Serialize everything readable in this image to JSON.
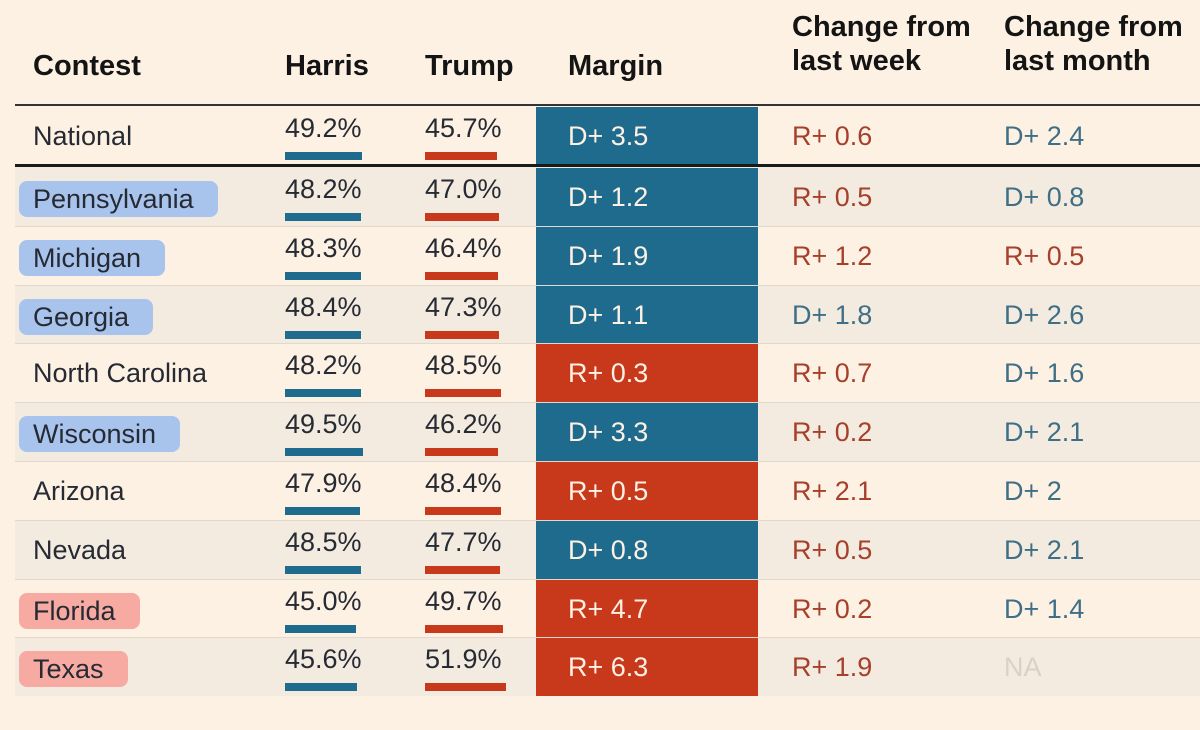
{
  "table": {
    "columns": [
      "Contest",
      "Harris",
      "Trump",
      "Margin",
      "Change from last week",
      "Change from last month"
    ],
    "rows": [
      [
        "National",
        "49.2%",
        "45.7%",
        "D+ 3.5",
        "R+ 0.6",
        "D+ 2.4"
      ],
      [
        "Pennsylvania",
        "48.2%",
        "47.0%",
        "D+ 1.2",
        "R+ 0.5",
        "D+ 0.8"
      ],
      [
        "Michigan",
        "48.3%",
        "46.4%",
        "D+ 1.9",
        "R+ 1.2",
        "R+ 0.5"
      ],
      [
        "Georgia",
        "48.4%",
        "47.3%",
        "D+ 1.1",
        "D+ 1.8",
        "D+ 2.6"
      ],
      [
        "North Carolina",
        "48.2%",
        "48.5%",
        "R+ 0.3",
        "R+ 0.7",
        "D+ 1.6"
      ],
      [
        "Wisconsin",
        "49.5%",
        "46.2%",
        "D+ 3.3",
        "R+ 0.2",
        "D+ 2.1"
      ],
      [
        "Arizona",
        "47.9%",
        "48.4%",
        "R+ 0.5",
        "R+ 2.1",
        "D+ 2"
      ],
      [
        "Nevada",
        "48.5%",
        "47.7%",
        "D+ 0.8",
        "R+ 0.5",
        "D+ 2.1"
      ],
      [
        "Florida",
        "45.0%",
        "49.7%",
        "R+ 4.7",
        "R+ 0.2",
        "D+ 1.4"
      ],
      [
        "Texas",
        "45.6%",
        "51.9%",
        "R+ 6.3",
        "R+ 1.9",
        "NA"
      ]
    ],
    "highlight_colors": [
      null,
      "#a8c3ec",
      "#a8c3ec",
      "#a8c3ec",
      null,
      "#a8c3ec",
      null,
      null,
      "#f6aaa2",
      "#f6aaa2"
    ],
    "harris_color": "#1f6b8e",
    "trump_color": "#c8381a"
  }
}
